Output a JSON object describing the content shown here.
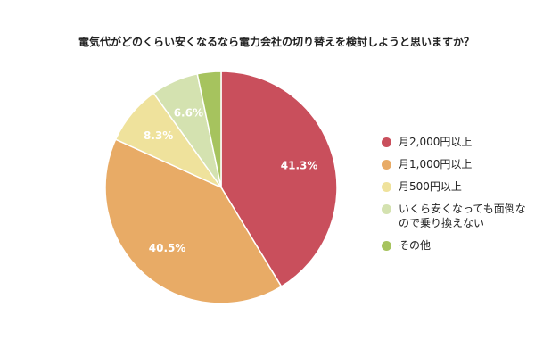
{
  "chart_data": {
    "type": "pie",
    "title": "電気代がどのくらい安くなるなら電力会社の切り替えを検討しようと思いますか？",
    "legend_position": "right",
    "slices": [
      {
        "label": "月2,000円以上",
        "value": 41.3,
        "value_label": "41.3%",
        "color": "#c94f5c",
        "label_color": "#ffffff"
      },
      {
        "label": "月1,000円以上",
        "value": 40.5,
        "value_label": "40.5%",
        "color": "#e8ab66",
        "label_color": "#ffffff"
      },
      {
        "label": "月500円以上",
        "value": 8.3,
        "value_label": "8.3%",
        "color": "#efe29c",
        "label_color": "#ffffff"
      },
      {
        "label": "いくら安くなっても面倒なので乗り換えない",
        "value": 6.6,
        "value_label": "6.6%",
        "color": "#d4e2b0",
        "label_color": "#ffffff"
      },
      {
        "label": "その他",
        "value": 3.3,
        "value_label": "",
        "color": "#a6c35e",
        "label_color": "#ffffff"
      }
    ]
  }
}
